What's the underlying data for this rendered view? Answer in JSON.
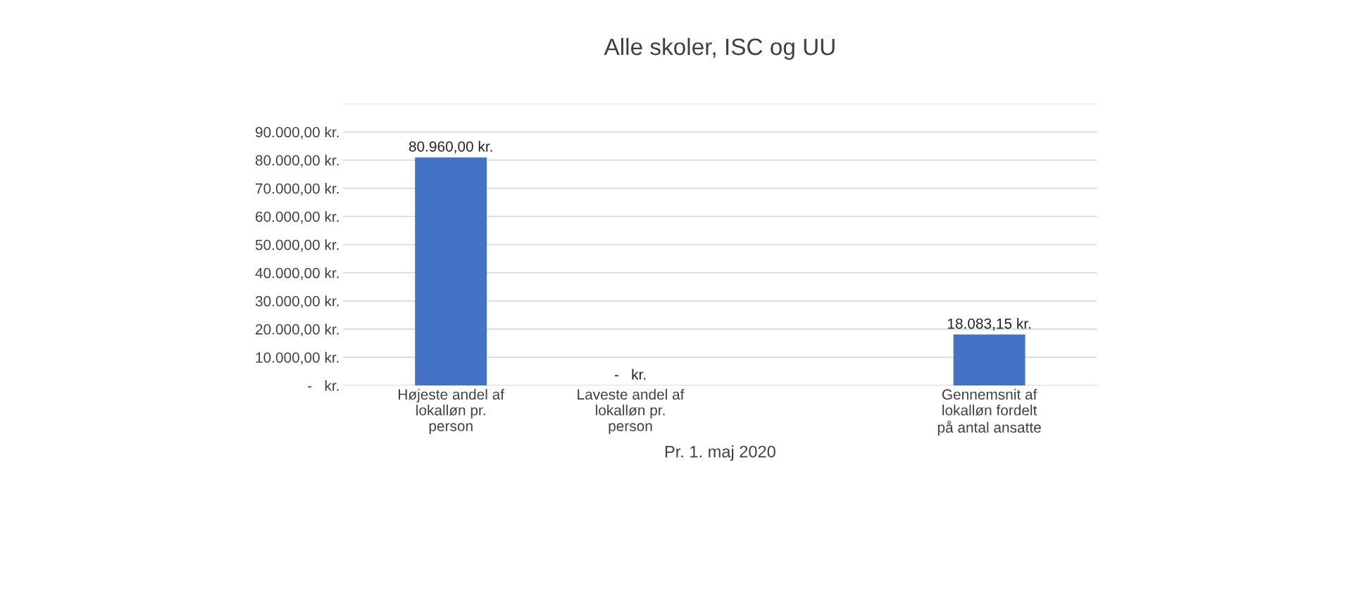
{
  "chart_data": {
    "type": "bar",
    "title": "Alle skoler, ISC og UU",
    "xlabel": "Pr. 1. maj 2020",
    "categories": [
      "Højeste andel af\nlokalløn pr.\nperson",
      "Laveste andel af\nlokalløn pr.\nperson",
      null,
      "Gennemsnit af\nlokalløn fordelt\npå antal ansatte"
    ],
    "values": [
      80960,
      0,
      null,
      18083.15
    ],
    "value_labels": [
      "80.960,00 kr.",
      "-   kr.",
      null,
      "18.083,15 kr."
    ],
    "color": "#4472c4",
    "ylim": [
      0,
      100000
    ],
    "yticks": [
      {
        "value": 0,
        "label": "-   kr."
      },
      {
        "value": 10000,
        "label": "10.000,00 kr."
      },
      {
        "value": 20000,
        "label": "20.000,00 kr."
      },
      {
        "value": 30000,
        "label": "30.000,00 kr."
      },
      {
        "value": 40000,
        "label": "40.000,00 kr."
      },
      {
        "value": 50000,
        "label": "50.000,00 kr."
      },
      {
        "value": 60000,
        "label": "60.000,00 kr."
      },
      {
        "value": 70000,
        "label": "70.000,00 kr."
      },
      {
        "value": 80000,
        "label": "80.000,00 kr."
      },
      {
        "value": 90000,
        "label": "90.000,00 kr."
      },
      {
        "value": 100000,
        "label": null
      }
    ],
    "grid": "y"
  }
}
